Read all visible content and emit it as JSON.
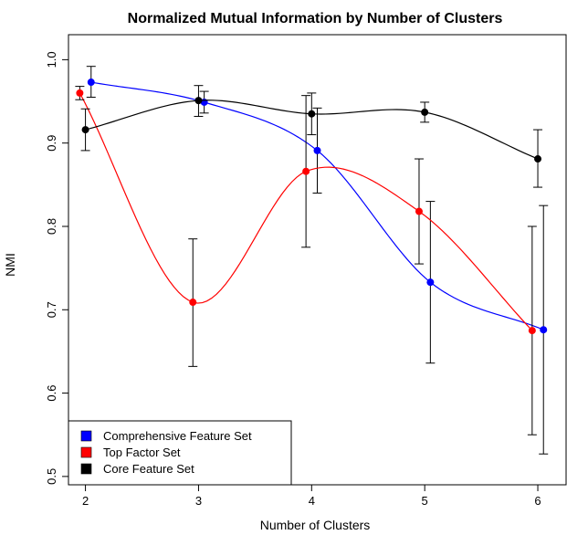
{
  "chart_data": {
    "type": "line",
    "title": "Normalized Mutual Information by Number of Clusters",
    "xlabel": "Number of Clusters",
    "ylabel": "NMI",
    "xlim": [
      1.85,
      6.25
    ],
    "ylim": [
      0.49,
      1.03
    ],
    "x_ticks": [
      "2",
      "3",
      "4",
      "5",
      "6"
    ],
    "y_ticks": [
      "0.5",
      "0.6",
      "0.7",
      "0.8",
      "0.9",
      "1.0"
    ],
    "legend_position": "bottom-left",
    "series": [
      {
        "name": "Comprehensive Feature Set",
        "color": "#0000ff",
        "points": [
          {
            "x": 2.05,
            "y": 0.973,
            "lo": 0.955,
            "hi": 0.992
          },
          {
            "x": 3.05,
            "y": 0.949,
            "lo": 0.936,
            "hi": 0.962
          },
          {
            "x": 4.05,
            "y": 0.891,
            "lo": 0.84,
            "hi": 0.942
          },
          {
            "x": 5.05,
            "y": 0.733,
            "lo": 0.636,
            "hi": 0.83
          },
          {
            "x": 6.05,
            "y": 0.676,
            "lo": 0.527,
            "hi": 0.825
          }
        ]
      },
      {
        "name": "Top Factor Set",
        "color": "#ff0000",
        "points": [
          {
            "x": 1.95,
            "y": 0.96,
            "lo": 0.952,
            "hi": 0.968
          },
          {
            "x": 2.95,
            "y": 0.709,
            "lo": 0.632,
            "hi": 0.785
          },
          {
            "x": 3.95,
            "y": 0.866,
            "lo": 0.775,
            "hi": 0.957
          },
          {
            "x": 4.95,
            "y": 0.818,
            "lo": 0.755,
            "hi": 0.881
          },
          {
            "x": 5.95,
            "y": 0.675,
            "lo": 0.55,
            "hi": 0.8
          }
        ]
      },
      {
        "name": "Core Feature Set",
        "color": "#000000",
        "points": [
          {
            "x": 2.0,
            "y": 0.916,
            "lo": 0.891,
            "hi": 0.941
          },
          {
            "x": 3.0,
            "y": 0.951,
            "lo": 0.932,
            "hi": 0.969
          },
          {
            "x": 4.0,
            "y": 0.935,
            "lo": 0.91,
            "hi": 0.96
          },
          {
            "x": 5.0,
            "y": 0.937,
            "lo": 0.925,
            "hi": 0.949
          },
          {
            "x": 6.0,
            "y": 0.881,
            "lo": 0.847,
            "hi": 0.916
          }
        ]
      }
    ]
  }
}
